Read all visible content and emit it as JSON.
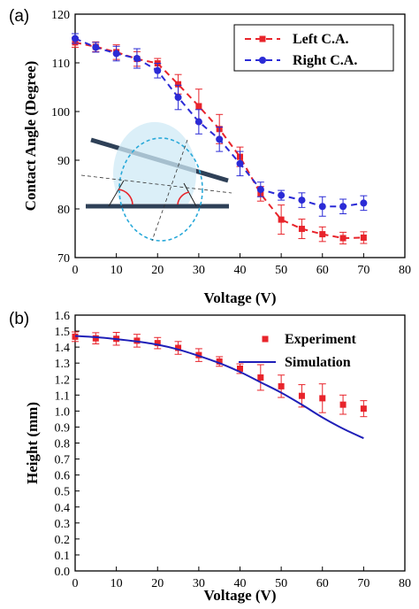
{
  "chart_data": [
    {
      "panel_label": "(a)",
      "type": "line",
      "xlabel": "Voltage (V)",
      "ylabel": "Contact Angle (Degree)",
      "xlim": [
        0,
        80
      ],
      "ylim": [
        70,
        120
      ],
      "xticks": [
        0,
        10,
        20,
        30,
        40,
        50,
        60,
        70,
        80
      ],
      "yticks": [
        70,
        80,
        90,
        100,
        110,
        120
      ],
      "grid": false,
      "legend_position": "top-right",
      "inset": "droplet-contact-angle-schematic",
      "series": [
        {
          "name": "Left C.A.",
          "color": "#e8242b",
          "marker": "square",
          "line_style": "dashed",
          "x": [
            0,
            5,
            10,
            15,
            20,
            25,
            30,
            35,
            40,
            45,
            50,
            55,
            60,
            65,
            70
          ],
          "values": [
            114.2,
            113.3,
            112.2,
            110.8,
            109.9,
            105.6,
            101.1,
            96.4,
            90.7,
            83.1,
            77.8,
            75.9,
            74.8,
            74.0,
            74.1
          ],
          "errors": [
            1.0,
            1.0,
            1.5,
            1.5,
            1.0,
            2.0,
            3.5,
            3.0,
            2.0,
            1.5,
            3.0,
            2.0,
            1.5,
            1.2,
            1.2
          ]
        },
        {
          "name": "Right C.A.",
          "color": "#2b2bd6",
          "marker": "circle",
          "line_style": "dashed",
          "x": [
            0,
            5,
            10,
            15,
            20,
            25,
            30,
            35,
            40,
            45,
            50,
            55,
            60,
            65,
            70
          ],
          "values": [
            115.0,
            113.2,
            111.9,
            110.9,
            108.4,
            102.9,
            97.9,
            94.3,
            89.3,
            84.0,
            82.8,
            81.8,
            80.5,
            80.5,
            81.2
          ],
          "errors": [
            1.0,
            1.0,
            1.5,
            2.0,
            1.5,
            2.5,
            2.5,
            2.5,
            2.5,
            1.5,
            1.0,
            1.5,
            2.0,
            1.5,
            1.5
          ]
        }
      ]
    },
    {
      "panel_label": "(b)",
      "type": "line",
      "xlabel": "Voltage (V)",
      "ylabel": "Height (mm)",
      "xlim": [
        0,
        80
      ],
      "ylim": [
        0.0,
        1.6
      ],
      "xticks": [
        0,
        10,
        20,
        30,
        40,
        50,
        60,
        70,
        80
      ],
      "yticks": [
        "0.0",
        "0.1",
        "0.2",
        "0.3",
        "0.4",
        "0.5",
        "0.6",
        "0.7",
        "0.8",
        "0.9",
        "1.0",
        "1.1",
        "1.2",
        "1.3",
        "1.4",
        "1.5",
        "1.6"
      ],
      "grid": false,
      "legend_position": "top-right",
      "series": [
        {
          "name": "Experiment",
          "color": "#e8242b",
          "marker": "square",
          "line_style": "none",
          "x": [
            0,
            5,
            10,
            15,
            20,
            25,
            30,
            35,
            40,
            45,
            50,
            55,
            60,
            65,
            70
          ],
          "values": [
            1.465,
            1.455,
            1.452,
            1.44,
            1.425,
            1.395,
            1.35,
            1.31,
            1.265,
            1.21,
            1.155,
            1.095,
            1.08,
            1.04,
            1.015
          ],
          "errors": [
            0.03,
            0.035,
            0.04,
            0.04,
            0.035,
            0.04,
            0.04,
            0.03,
            0.03,
            0.08,
            0.07,
            0.07,
            0.09,
            0.06,
            0.05
          ]
        },
        {
          "name": "Simulation",
          "color": "#1f1fb8",
          "marker": "none",
          "line_style": "solid",
          "x": [
            0,
            5,
            10,
            15,
            20,
            25,
            30,
            35,
            40,
            45,
            50,
            55,
            60,
            65,
            70
          ],
          "values": [
            1.47,
            1.462,
            1.45,
            1.435,
            1.415,
            1.385,
            1.345,
            1.3,
            1.245,
            1.18,
            1.115,
            1.04,
            0.96,
            0.89,
            0.83
          ]
        }
      ]
    }
  ]
}
